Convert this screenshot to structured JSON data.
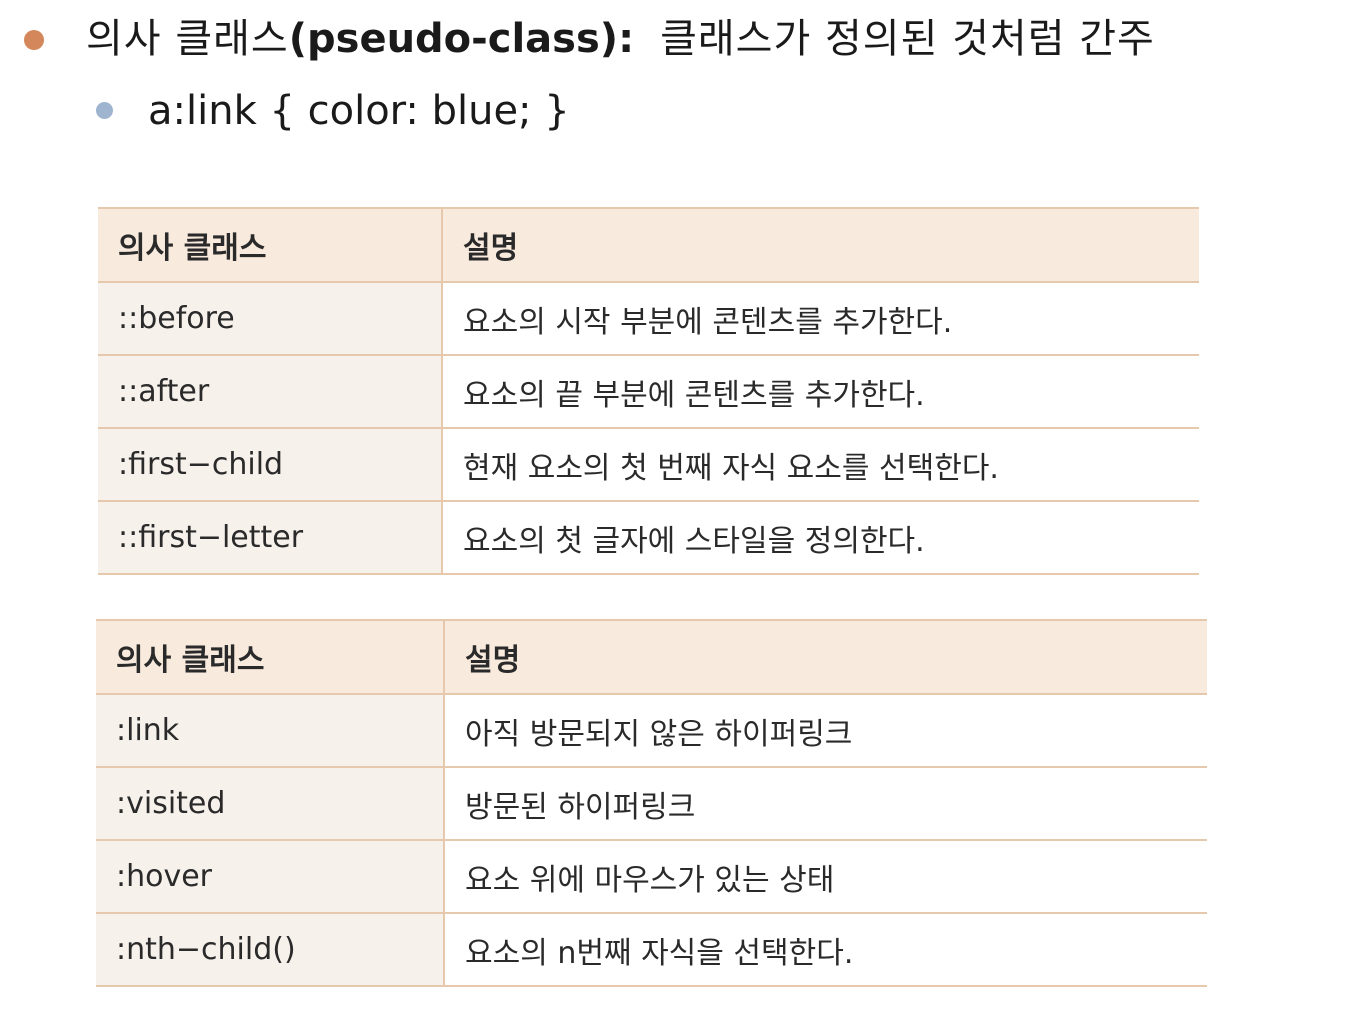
{
  "heading": {
    "term": "의사 클래스",
    "term_en": "(pseudo-class):",
    "description": "클래스가 정의된 것처럼 간주"
  },
  "example": {
    "code": "a:link { color: blue; }"
  },
  "colors": {
    "bullet_main": "#d4875a",
    "bullet_sub": "#9fb4cf",
    "table_header_bg": "#f8eadd",
    "table_border": "#e6c8ac"
  },
  "table1": {
    "headers": [
      "의사 클래스",
      "설명"
    ],
    "rows": [
      [
        "::before",
        "요소의 시작 부분에 콘텐츠를 추가한다."
      ],
      [
        "::after",
        "요소의 끝 부분에 콘텐츠를 추가한다."
      ],
      [
        ":first−child",
        "현재 요소의 첫 번째 자식 요소를 선택한다."
      ],
      [
        "::first−letter",
        "요소의 첫 글자에 스타일을 정의한다."
      ]
    ]
  },
  "table2": {
    "headers": [
      "의사 클래스",
      "설명"
    ],
    "rows": [
      [
        ":link",
        "아직 방문되지 않은 하이퍼링크"
      ],
      [
        ":visited",
        "방문된 하이퍼링크"
      ],
      [
        ":hover",
        "요소 위에 마우스가 있는 상태"
      ],
      [
        ":nth−child()",
        "요소의 n번째 자식을 선택한다."
      ]
    ]
  }
}
